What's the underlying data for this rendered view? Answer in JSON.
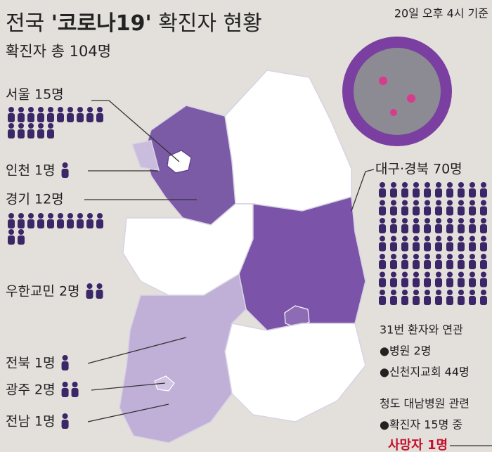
{
  "header": {
    "title_parts": [
      "전국 ",
      "'코로나19'",
      " 확진자 현황"
    ],
    "subtitle": "확진자 총 104명",
    "timestamp": "20일 오후 4시 기준"
  },
  "regions": [
    {
      "label": "서울 15명",
      "icons": 15
    },
    {
      "label": "인천 1명",
      "icons": 1
    },
    {
      "label": "경기 12명",
      "icons": 12
    },
    {
      "label": "우한교민 2명",
      "icons": 2
    },
    {
      "label": "전북 1명",
      "icons": 1
    },
    {
      "label": "광주 2명",
      "icons": 2
    },
    {
      "label": "전남 1명",
      "icons": 1
    },
    {
      "label": "대구·경북 70명",
      "icons": 70
    }
  ],
  "notes": {
    "patient31": [
      "31번 환자와 연관",
      "●병원 2명",
      "●신천지교회 44명"
    ],
    "cheongdo": [
      "청도 대남병원 관련",
      "●확진자 15명 중",
      "사망자 1명"
    ]
  }
}
